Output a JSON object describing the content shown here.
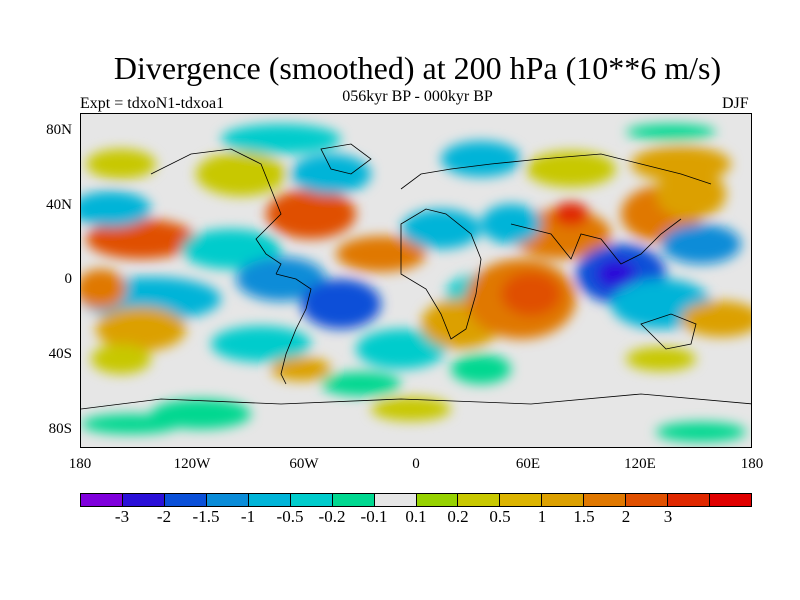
{
  "title": "Divergence (smoothed) at 200 hPa (10**6 m/s)",
  "subtitle": "056kyr BP - 000kyr BP",
  "experiment": "Expt = tdxoN1-tdxoa1",
  "season": "DJF",
  "y_axis_labels": [
    "80N",
    "40N",
    "0",
    "40S",
    "80S"
  ],
  "x_axis_labels": [
    "180",
    "120W",
    "60W",
    "0",
    "60E",
    "120E",
    "180"
  ],
  "colorbar": {
    "colors": [
      "#7f00dc",
      "#2a10d8",
      "#0a50d8",
      "#0a8cd8",
      "#00b4d8",
      "#00cccc",
      "#00d890",
      "#e6e6e6",
      "#96d200",
      "#c8c800",
      "#dcb400",
      "#dca000",
      "#e07800",
      "#e05000",
      "#e02800",
      "#e00000"
    ],
    "labels": [
      "-3",
      "-2",
      "-1.5",
      "-1",
      "-0.5",
      "-0.2",
      "-0.1",
      "0.1",
      "0.2",
      "0.5",
      "1",
      "1.5",
      "2",
      "3"
    ]
  },
  "chart_data": {
    "type": "heatmap",
    "title": "Divergence (smoothed) at 200 hPa (10**6 m/s)",
    "variable": "Divergence (smoothed) at 200 hPa",
    "units": "10**6 m/s",
    "difference": "056kyr BP - 000kyr BP",
    "season": "DJF",
    "x_range_deg": [
      -180,
      180
    ],
    "y_range_deg": [
      -90,
      90
    ],
    "contour_levels": [
      -3,
      -2,
      -1.5,
      -1,
      -0.5,
      -0.2,
      -0.1,
      0.1,
      0.2,
      0.5,
      1,
      1.5,
      2,
      3
    ]
  }
}
